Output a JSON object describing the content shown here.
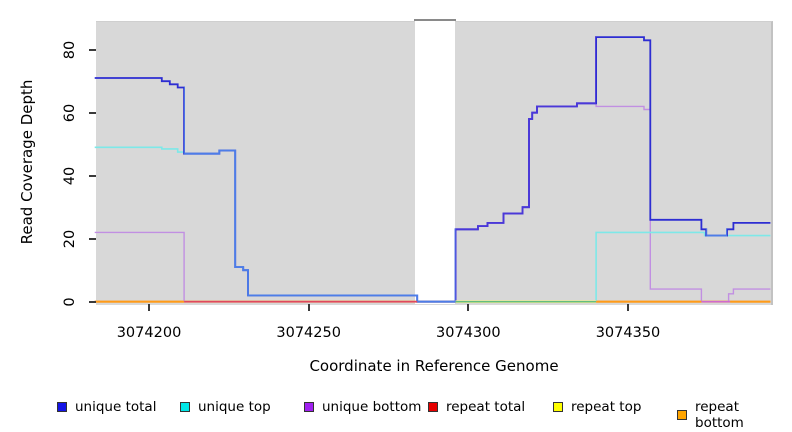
{
  "figure": {
    "x_axis": {
      "title": "Coordinate in Reference Genome",
      "tick_labels": [
        "3074200",
        "3074250",
        "3074300",
        "3074350"
      ],
      "tick_values": [
        3074200,
        3074250,
        3074300,
        3074350
      ]
    },
    "y_axis": {
      "title": "Read Coverage Depth",
      "tick_labels": [
        "0",
        "20",
        "40",
        "60",
        "80"
      ],
      "tick_values": [
        0,
        20,
        40,
        60,
        80
      ]
    },
    "legend": {
      "items": [
        {
          "label": "unique total",
          "color": "#1414e6"
        },
        {
          "label": "unique top",
          "color": "#00e5e5"
        },
        {
          "label": "unique bottom",
          "color": "#a020f0"
        },
        {
          "label": "repeat total",
          "color": "#e60000"
        },
        {
          "label": "repeat top",
          "color": "#ffff00"
        },
        {
          "label": "repeat bottom",
          "color": "#ffa500"
        }
      ]
    }
  },
  "chart_data": {
    "type": "line",
    "subtype": "step",
    "title": "",
    "xlabel": "Coordinate in Reference Genome",
    "ylabel": "Read Coverage Depth",
    "xlim": [
      3074183,
      3074394.6
    ],
    "ylim": [
      0,
      89
    ],
    "grid": false,
    "legend_position": "bottom",
    "panel_background": "#d8d8d8",
    "no_data_gap_x": [
      3074284,
      3074296
    ],
    "series": [
      {
        "name": "repeat total",
        "legend_color": "#e60000",
        "line_color": "#e0485f",
        "width": 1.6,
        "points": [
          [
            3074183,
            0
          ],
          [
            3074394.6,
            0
          ]
        ]
      },
      {
        "name": "repeat top",
        "legend_color": "#ffff00",
        "line_color": "#e9e98e",
        "width": 1.6,
        "points": [
          [
            3074183,
            0
          ],
          [
            3074394.6,
            0
          ]
        ]
      },
      {
        "name": "repeat bottom",
        "legend_color": "#ffa500",
        "line_color": "#ff9b19",
        "width": 1.8,
        "points": [
          [
            3074183,
            0
          ],
          [
            3074394.6,
            0
          ]
        ]
      },
      {
        "name": "unique bottom",
        "legend_color": "#a020f0",
        "line_color": "#c18fe2",
        "width": 1.4,
        "points": [
          [
            3074183,
            22
          ],
          [
            3074211,
            0
          ],
          [
            3074296,
            23
          ],
          [
            3074303,
            24
          ],
          [
            3074306,
            25
          ],
          [
            3074311,
            28
          ],
          [
            3074317,
            30
          ],
          [
            3074319,
            58
          ],
          [
            3074320,
            60
          ],
          [
            3074321.5,
            62
          ],
          [
            3074334,
            63
          ],
          [
            3074340,
            62
          ],
          [
            3074355,
            61
          ],
          [
            3074357,
            4
          ],
          [
            3074373,
            0
          ],
          [
            3074381.5,
            2.5
          ],
          [
            3074383,
            4
          ],
          [
            3074394.6,
            4
          ]
        ]
      },
      {
        "name": "unique top",
        "legend_color": "#00e5e5",
        "line_color": "#7de8e8",
        "width": 1.6,
        "points": [
          [
            3074183,
            49
          ],
          [
            3074204,
            48.5
          ],
          [
            3074209,
            47.5
          ],
          [
            3074211,
            47
          ],
          [
            3074222,
            48
          ],
          [
            3074227,
            11
          ],
          [
            3074229.5,
            10
          ],
          [
            3074231,
            2
          ],
          [
            3074284,
            0
          ],
          [
            3074340,
            22
          ],
          [
            3074374,
            21
          ],
          [
            3074394.6,
            21
          ]
        ]
      },
      {
        "name": "unique total",
        "legend_color": "#1414e6",
        "line_color": "#2d2dd2",
        "width": 1.8,
        "color_overrides": [
          {
            "from": 3074211,
            "to": 3074296,
            "color": "#4d7de8"
          },
          {
            "from": 3074296,
            "to": 3074340,
            "color": "#4b38d8"
          },
          {
            "from": 3074374.5,
            "to": 3074381,
            "color": "#4d7de8"
          }
        ],
        "points": [
          [
            3074183,
            71
          ],
          [
            3074204,
            70
          ],
          [
            3074206.5,
            69
          ],
          [
            3074209,
            68
          ],
          [
            3074211,
            47
          ],
          [
            3074222,
            48
          ],
          [
            3074227,
            11
          ],
          [
            3074229.5,
            10
          ],
          [
            3074231,
            2
          ],
          [
            3074284,
            0
          ],
          [
            3074296,
            23
          ],
          [
            3074303,
            24
          ],
          [
            3074306,
            25
          ],
          [
            3074311,
            28
          ],
          [
            3074317,
            30
          ],
          [
            3074319,
            58
          ],
          [
            3074320,
            60
          ],
          [
            3074321.5,
            62
          ],
          [
            3074334,
            63
          ],
          [
            3074340,
            84
          ],
          [
            3074355,
            83
          ],
          [
            3074357,
            26
          ],
          [
            3074373,
            23
          ],
          [
            3074374.5,
            21
          ],
          [
            3074381,
            23
          ],
          [
            3074383,
            25
          ],
          [
            3074394.6,
            25
          ]
        ]
      }
    ],
    "zero_line_segments": [
      {
        "from": 3074183,
        "to": 3074211,
        "color": "#ff9b19",
        "width": 1.8
      },
      {
        "from": 3074211,
        "to": 3074284,
        "color": "#e0485f",
        "width": 1.6
      },
      {
        "from": 3074296,
        "to": 3074340,
        "color": "#e9e98e",
        "width": 2.6
      },
      {
        "from": 3074296,
        "to": 3074340,
        "color": "#63bd80",
        "width": 1.4
      },
      {
        "from": 3074340,
        "to": 3074373,
        "color": "#ff9b19",
        "width": 1.8
      },
      {
        "from": 3074373,
        "to": 3074382,
        "color": "#cf6ad0",
        "width": 1.6
      },
      {
        "from": 3074382,
        "to": 3074394.6,
        "color": "#ff9b19",
        "width": 1.8
      }
    ]
  }
}
